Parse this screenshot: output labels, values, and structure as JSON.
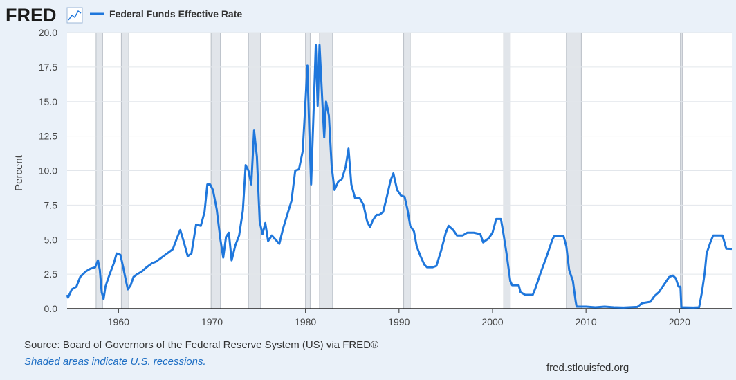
{
  "chart_data": {
    "type": "line",
    "logo": "FRED",
    "source": "Source: Board of Governors of the Federal Reserve System (US) via FRED®",
    "note": "Shaded areas indicate U.S. recessions.",
    "site": "fred.stlouisfed.org",
    "ylabel": "Percent",
    "xlim": [
      1954.5,
      2025.6
    ],
    "ylim": [
      0,
      20
    ],
    "xticks": [
      1960,
      1970,
      1980,
      1990,
      2000,
      2010,
      2020
    ],
    "yticks": [
      {
        "value": 0,
        "label": "0.0"
      },
      2.5,
      {
        "value": 5,
        "label": "5.0"
      },
      7.5,
      {
        "value": 10,
        "label": "10.0"
      },
      12.5,
      {
        "value": 15,
        "label": "15.0"
      },
      17.5,
      {
        "value": 20,
        "label": "20.0"
      }
    ],
    "grid": true,
    "recessions": [
      [
        1957.6,
        1958.3
      ],
      [
        1960.3,
        1961.1
      ],
      [
        1969.9,
        1970.9
      ],
      [
        1973.9,
        1975.2
      ],
      [
        1980.0,
        1980.5
      ],
      [
        1981.5,
        1982.9
      ],
      [
        1990.5,
        1991.2
      ],
      [
        2001.2,
        2001.9
      ],
      [
        2007.9,
        2009.5
      ],
      [
        2020.1,
        2020.3
      ]
    ],
    "recession_color": "#e1e5ea",
    "x": [
      1954.5,
      1954.6,
      1955.0,
      1955.5,
      1955.9,
      1956.5,
      1957.0,
      1957.5,
      1957.8,
      1958.0,
      1958.2,
      1958.4,
      1958.6,
      1959.0,
      1959.5,
      1959.8,
      1960.2,
      1960.5,
      1960.8,
      1961.0,
      1961.3,
      1961.6,
      1962.0,
      1962.5,
      1963.0,
      1963.6,
      1964.0,
      1965.0,
      1965.8,
      1966.3,
      1966.6,
      1967.0,
      1967.4,
      1967.8,
      1968.3,
      1968.8,
      1969.2,
      1969.5,
      1969.8,
      1970.1,
      1970.5,
      1970.9,
      1971.2,
      1971.5,
      1971.8,
      1972.1,
      1972.5,
      1972.9,
      1973.3,
      1973.6,
      1973.9,
      1974.2,
      1974.5,
      1974.8,
      1975.1,
      1975.4,
      1975.7,
      1976.0,
      1976.4,
      1976.8,
      1977.2,
      1977.6,
      1978.0,
      1978.5,
      1978.9,
      1979.3,
      1979.7,
      1979.9,
      1980.2,
      1980.4,
      1980.6,
      1980.9,
      1981.1,
      1981.3,
      1981.5,
      1981.8,
      1982.0,
      1982.2,
      1982.5,
      1982.8,
      1983.1,
      1983.5,
      1983.9,
      1984.3,
      1984.6,
      1984.9,
      1985.3,
      1985.8,
      1986.2,
      1986.6,
      1986.9,
      1987.2,
      1987.6,
      1987.9,
      1988.3,
      1988.7,
      1989.1,
      1989.4,
      1989.8,
      1990.2,
      1990.6,
      1990.9,
      1991.2,
      1991.6,
      1991.9,
      1992.3,
      1992.7,
      1993.0,
      1993.6,
      1994.0,
      1994.5,
      1995.0,
      1995.3,
      1995.8,
      1996.2,
      1996.8,
      1997.3,
      1998.0,
      1998.7,
      1999.0,
      1999.6,
      2000.0,
      2000.4,
      2000.9,
      2001.2,
      2001.5,
      2001.9,
      2002.1,
      2002.8,
      2003.0,
      2003.5,
      2004.3,
      2004.6,
      2005.2,
      2005.8,
      2006.4,
      2006.6,
      2007.6,
      2007.9,
      2008.2,
      2008.6,
      2008.9,
      2009.0,
      2010.0,
      2011.0,
      2012.0,
      2013.0,
      2014.0,
      2015.5,
      2016.0,
      2016.9,
      2017.3,
      2017.8,
      2018.3,
      2018.9,
      2019.3,
      2019.6,
      2019.9,
      2020.1,
      2020.2,
      2021.5,
      2022.1,
      2022.4,
      2022.7,
      2022.9,
      2023.3,
      2023.6,
      2024.6,
      2024.9,
      2025.0,
      2025.6
    ],
    "series": [
      {
        "name": "Federal Funds Effective Rate",
        "color": "#1f77dc",
        "values": [
          1.0,
          0.8,
          1.4,
          1.6,
          2.3,
          2.7,
          2.9,
          3.0,
          3.5,
          2.8,
          1.2,
          0.7,
          1.6,
          2.4,
          3.3,
          4.0,
          3.9,
          3.0,
          2.0,
          1.4,
          1.7,
          2.3,
          2.5,
          2.7,
          3.0,
          3.3,
          3.4,
          3.9,
          4.3,
          5.2,
          5.7,
          4.8,
          3.8,
          4.0,
          6.1,
          6.0,
          7.0,
          9.0,
          9.0,
          8.6,
          7.2,
          5.0,
          3.7,
          5.2,
          5.5,
          3.5,
          4.6,
          5.3,
          7.1,
          10.4,
          10.0,
          9.0,
          12.9,
          11.0,
          6.3,
          5.4,
          6.2,
          4.9,
          5.3,
          5.0,
          4.7,
          5.8,
          6.7,
          7.8,
          10.0,
          10.1,
          11.4,
          13.8,
          17.6,
          13.0,
          9.0,
          15.0,
          19.1,
          14.7,
          19.1,
          15.0,
          12.4,
          15.0,
          14.0,
          10.3,
          8.6,
          9.2,
          9.4,
          10.3,
          11.6,
          9.0,
          8.0,
          8.0,
          7.5,
          6.3,
          5.9,
          6.4,
          6.8,
          6.8,
          7.0,
          8.1,
          9.3,
          9.8,
          8.6,
          8.2,
          8.1,
          7.2,
          6.0,
          5.6,
          4.5,
          3.8,
          3.2,
          3.0,
          3.0,
          3.1,
          4.2,
          5.5,
          6.0,
          5.7,
          5.3,
          5.3,
          5.5,
          5.5,
          5.4,
          4.8,
          5.1,
          5.5,
          6.5,
          6.5,
          5.3,
          4.0,
          2.0,
          1.7,
          1.7,
          1.2,
          1.0,
          1.0,
          1.5,
          2.7,
          3.8,
          5.0,
          5.25,
          5.25,
          4.5,
          2.8,
          2.0,
          0.5,
          0.15,
          0.15,
          0.1,
          0.15,
          0.1,
          0.08,
          0.13,
          0.4,
          0.5,
          0.9,
          1.2,
          1.7,
          2.3,
          2.4,
          2.2,
          1.6,
          1.6,
          0.1,
          0.08,
          0.1,
          1.2,
          2.6,
          4.0,
          4.8,
          5.3,
          5.3,
          4.6,
          4.35,
          4.33
        ]
      }
    ]
  }
}
